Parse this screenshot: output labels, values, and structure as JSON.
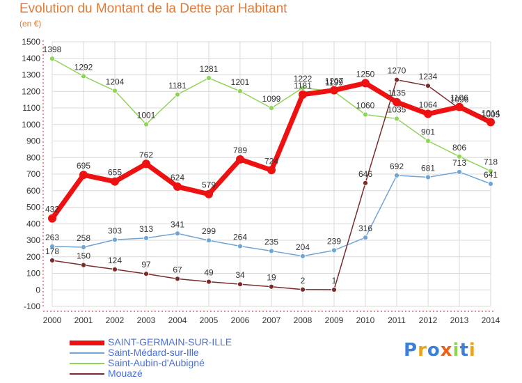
{
  "chart_data": {
    "type": "line",
    "title": "Evolution du Montant de la Dette par Habitant",
    "ylabel": "(en €)",
    "ylim": [
      -100,
      1500
    ],
    "yticks": [
      -100,
      0,
      100,
      200,
      300,
      400,
      500,
      600,
      700,
      800,
      900,
      1000,
      1100,
      1200,
      1300,
      1400,
      1500
    ],
    "x": [
      2000,
      2001,
      2002,
      2003,
      2004,
      2005,
      2006,
      2007,
      2008,
      2009,
      2010,
      2011,
      2012,
      2013,
      2014
    ],
    "grid": true,
    "legend_position": "bottom",
    "series": [
      {
        "name": "Saint-Aubin-d'Aubigné",
        "color": "#8ed457",
        "values": [
          1398,
          1292,
          1204,
          1001,
          1181,
          1281,
          1201,
          1099,
          1222,
          1199,
          1060,
          1035,
          901,
          806,
          718
        ]
      },
      {
        "name": "Saint-Médard-sur-Ille",
        "color": "#6fa4d4",
        "values": [
          263,
          258,
          303,
          313,
          341,
          299,
          264,
          235,
          204,
          239,
          316,
          692,
          681,
          713,
          641
        ]
      },
      {
        "name": "Mouazé",
        "color": "#7a2b2b",
        "values": [
          178,
          150,
          124,
          97,
          67,
          49,
          34,
          19,
          2,
          1,
          646,
          1270,
          1234,
          1096,
          1005
        ]
      },
      {
        "name": "SAINT-GERMAIN-SUR-ILLE",
        "color": "#ee1111",
        "values": [
          432,
          695,
          655,
          762,
          624,
          579,
          789,
          724,
          1181,
          1207,
          1250,
          1135,
          1064,
          1106,
          1014
        ]
      }
    ],
    "legend_order": [
      3,
      1,
      0,
      2
    ]
  },
  "logo": {
    "text": "Proxiti"
  }
}
